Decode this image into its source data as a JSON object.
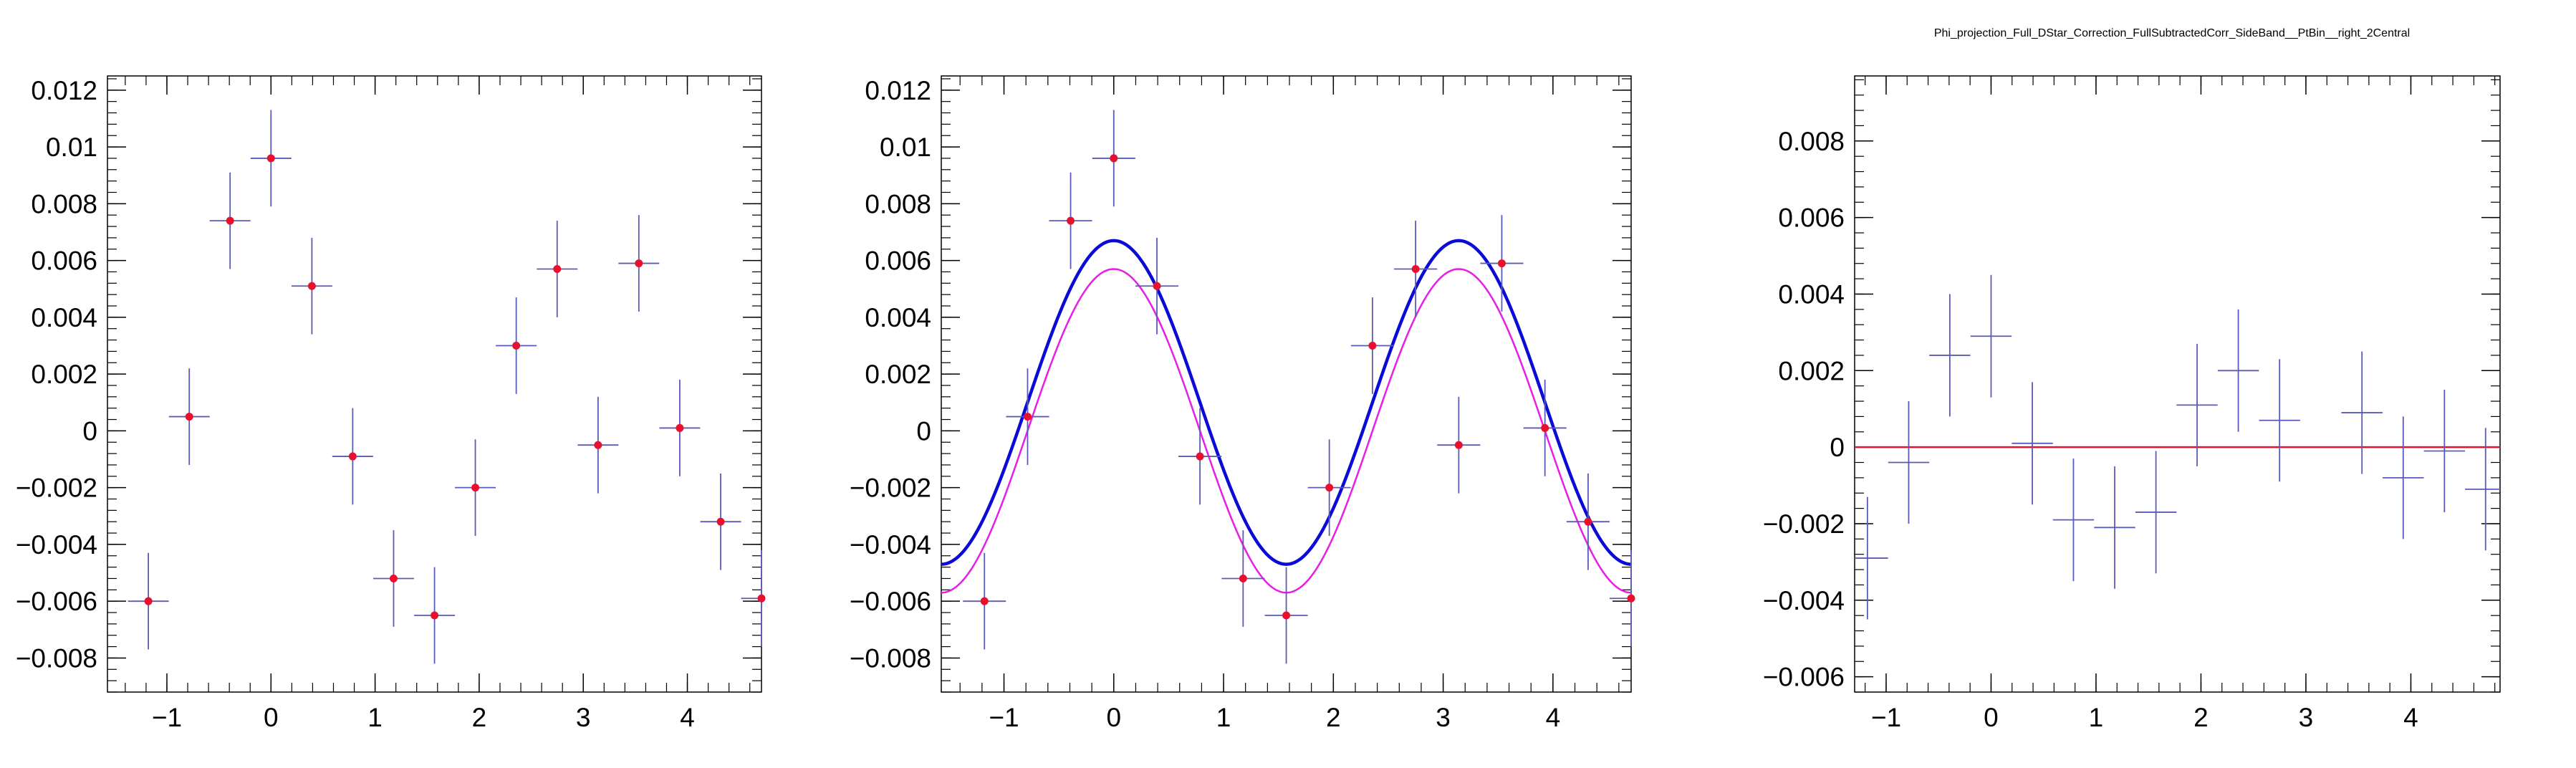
{
  "page_title": "Phi_projection_Full_DStar_Correction_FullSubtractedCorr_SideBand__PtBin__right_2Central",
  "colors": {
    "background": "#ffffff",
    "frame": "#000000",
    "points_error": "#5a5ab8",
    "points_marker": "#e8112d",
    "fit_blue": "#0b0bd8",
    "fit_magenta": "#e61ee6",
    "zero_line": "#e8112d"
  },
  "chart_data": [
    {
      "type": "scatter",
      "title": "",
      "xlabel": "",
      "ylabel": "",
      "xlim": [
        -1.571,
        4.712
      ],
      "ylim": [
        -0.0092,
        0.0125
      ],
      "xticks": [
        -1,
        0,
        1,
        2,
        3,
        4
      ],
      "xtick_labels": [
        "−1",
        "0",
        "1",
        "2",
        "3",
        "4"
      ],
      "yticks": [
        -0.008,
        -0.006,
        -0.004,
        -0.002,
        0,
        0.002,
        0.004,
        0.006,
        0.008,
        0.01,
        0.012
      ],
      "ytick_labels": [
        "−0.008",
        "−0.006",
        "−0.004",
        "−0.002",
        "0",
        "0.002",
        "0.004",
        "0.006",
        "0.008",
        "0.01",
        "0.012"
      ],
      "grid": false,
      "bin_halfwidth": 0.196,
      "series": [
        {
          "x": [
            -1.178,
            -0.785,
            -0.393,
            0.0,
            0.393,
            0.785,
            1.178,
            1.571,
            1.963,
            2.356,
            2.749,
            3.142,
            3.534,
            3.927,
            4.32,
            4.712
          ],
          "y": [
            -0.006,
            0.0005,
            0.0074,
            0.0096,
            0.0051,
            -0.0009,
            -0.0052,
            -0.0065,
            -0.002,
            0.003,
            0.0057,
            -0.0005,
            0.0059,
            0.0001,
            -0.0032,
            -0.0059
          ],
          "yerr": [
            0.0017,
            0.0017,
            0.0017,
            0.0017,
            0.0017,
            0.0017,
            0.0017,
            0.0017,
            0.0017,
            0.0017,
            0.0017,
            0.0017,
            0.0017,
            0.0017,
            0.0017,
            0.0017
          ]
        }
      ]
    },
    {
      "type": "scatter",
      "title": "",
      "xlabel": "",
      "ylabel": "",
      "xlim": [
        -1.571,
        4.712
      ],
      "ylim": [
        -0.0092,
        0.0125
      ],
      "xticks": [
        -1,
        0,
        1,
        2,
        3,
        4
      ],
      "xtick_labels": [
        "−1",
        "0",
        "1",
        "2",
        "3",
        "4"
      ],
      "yticks": [
        -0.008,
        -0.006,
        -0.004,
        -0.002,
        0,
        0.002,
        0.004,
        0.006,
        0.008,
        0.01,
        0.012
      ],
      "ytick_labels": [
        "−0.008",
        "−0.006",
        "−0.004",
        "−0.002",
        "0",
        "0.002",
        "0.004",
        "0.006",
        "0.008",
        "0.01",
        "0.012"
      ],
      "grid": false,
      "bin_halfwidth": 0.196,
      "series": [
        {
          "x": [
            -1.178,
            -0.785,
            -0.393,
            0.0,
            0.393,
            0.785,
            1.178,
            1.571,
            1.963,
            2.356,
            2.749,
            3.142,
            3.534,
            3.927,
            4.32,
            4.712
          ],
          "y": [
            -0.006,
            0.0005,
            0.0074,
            0.0096,
            0.0051,
            -0.0009,
            -0.0052,
            -0.0065,
            -0.002,
            0.003,
            0.0057,
            -0.0005,
            0.0059,
            0.0001,
            -0.0032,
            -0.0059
          ],
          "yerr": [
            0.0017,
            0.0017,
            0.0017,
            0.0017,
            0.0017,
            0.0017,
            0.0017,
            0.0017,
            0.0017,
            0.0017,
            0.0017,
            0.0017,
            0.0017,
            0.0017,
            0.0017,
            0.0017
          ]
        }
      ],
      "curves": [
        {
          "color_key": "fit_blue",
          "offset": 0.001,
          "amplitude": 0.0057,
          "period": 3.1416
        },
        {
          "color_key": "fit_magenta",
          "offset": 0.0,
          "amplitude": 0.0057,
          "period": 3.1416
        }
      ]
    },
    {
      "type": "scatter",
      "title": "",
      "xlabel": "",
      "ylabel": "",
      "xlim": [
        -1.3,
        4.85
      ],
      "ylim": [
        -0.0064,
        0.0097
      ],
      "xticks": [
        -1,
        0,
        1,
        2,
        3,
        4
      ],
      "xtick_labels": [
        "−1",
        "0",
        "1",
        "2",
        "3",
        "4"
      ],
      "yticks": [
        -0.006,
        -0.004,
        -0.002,
        0,
        0.002,
        0.004,
        0.006,
        0.008
      ],
      "ytick_labels": [
        "−0.006",
        "−0.004",
        "−0.002",
        "0",
        "0.002",
        "0.004",
        "0.006",
        "0.008"
      ],
      "grid": false,
      "bin_halfwidth": 0.196,
      "series": [
        {
          "x": [
            -1.178,
            -0.785,
            -0.393,
            0.0,
            0.393,
            0.785,
            1.178,
            1.571,
            1.963,
            2.356,
            2.749,
            3.534,
            3.927,
            4.32,
            4.712
          ],
          "y": [
            -0.0029,
            -0.0004,
            0.0024,
            0.0029,
            0.0001,
            -0.0019,
            -0.0021,
            -0.0017,
            0.0011,
            0.002,
            0.0007,
            0.0009,
            -0.0008,
            -0.0001,
            -0.0011
          ],
          "yerr": [
            0.0016,
            0.0016,
            0.0016,
            0.0016,
            0.0016,
            0.0016,
            0.0016,
            0.0016,
            0.0016,
            0.0016,
            0.0016,
            0.0016,
            0.0016,
            0.0016,
            0.0016
          ]
        }
      ],
      "reference_line": {
        "y": 0.0,
        "color_key": "zero_line"
      }
    }
  ]
}
